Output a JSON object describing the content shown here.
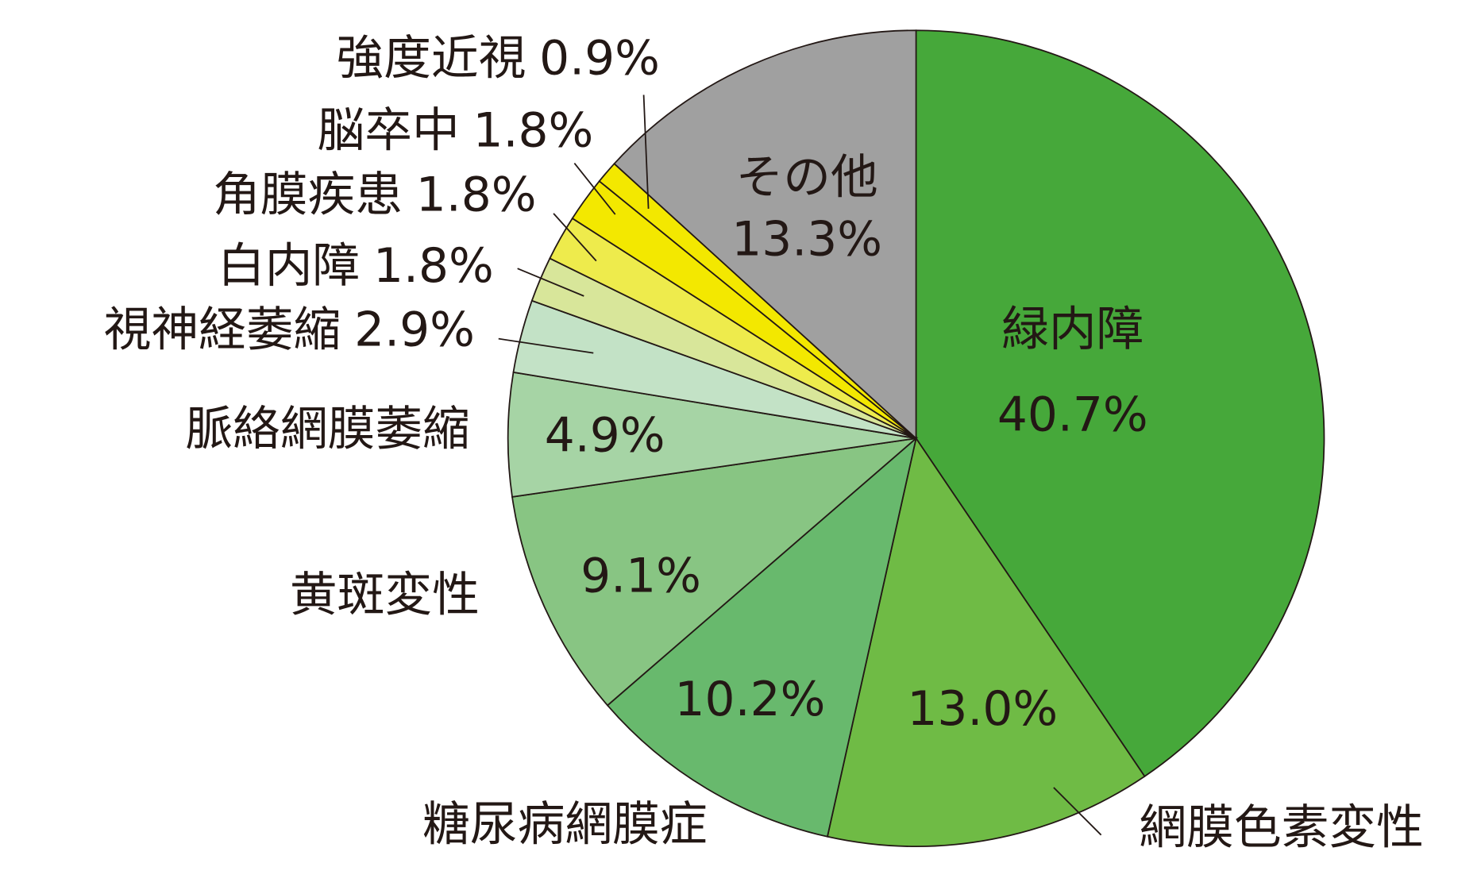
{
  "chart_data": {
    "type": "pie",
    "categories": [
      "緑内障",
      "網膜色素変性",
      "糖尿病網膜症",
      "黄斑変性",
      "脈絡網膜萎縮",
      "視神経萎縮",
      "白内障",
      "角膜疾患",
      "脳卒中",
      "強度近視",
      "その他"
    ],
    "values": [
      40.7,
      13.0,
      10.2,
      9.1,
      4.9,
      2.9,
      1.8,
      1.8,
      1.8,
      0.9,
      13.3
    ],
    "value_labels": [
      "40.7%",
      "13.0%",
      "10.2%",
      "9.1%",
      "4.9%",
      "2.9%",
      "1.8%",
      "1.8%",
      "1.8%",
      "0.9%",
      "13.3%"
    ],
    "colors": [
      "#46a83a",
      "#6fbb45",
      "#68b96d",
      "#88c583",
      "#a6d4a5",
      "#c3e2c6",
      "#d8e69a",
      "#eeeb4c",
      "#f3e800",
      "#f3e800",
      "#a0a0a0"
    ]
  }
}
